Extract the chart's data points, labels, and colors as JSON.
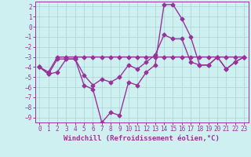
{
  "xlabel": "Windchill (Refroidissement éolien,°C)",
  "background_color": "#cff0f0",
  "grid_color": "#aad4d4",
  "line_color": "#993399",
  "x": [
    0,
    1,
    2,
    3,
    4,
    5,
    6,
    7,
    8,
    9,
    10,
    11,
    12,
    13,
    14,
    15,
    16,
    17,
    18,
    19,
    20,
    21,
    22,
    23
  ],
  "line1": [
    -4.0,
    -4.5,
    -3.0,
    -3.0,
    -3.0,
    -3.0,
    -3.0,
    -3.0,
    -3.0,
    -3.0,
    -3.0,
    -3.0,
    -3.0,
    -3.0,
    -3.0,
    -3.0,
    -3.0,
    -3.0,
    -3.0,
    -3.0,
    -3.0,
    -3.0,
    -3.0,
    -3.0
  ],
  "line2": [
    -4.0,
    -4.7,
    -4.5,
    -3.2,
    -3.2,
    -4.8,
    -5.8,
    -5.2,
    -5.5,
    -5.0,
    -3.8,
    -4.2,
    -3.5,
    -2.8,
    -0.8,
    -1.2,
    -1.2,
    -3.5,
    -3.8,
    -3.8,
    -3.0,
    -4.2,
    -3.5,
    -3.0
  ],
  "line3": [
    -4.0,
    -4.7,
    -3.2,
    -3.2,
    -3.2,
    -5.8,
    -6.2,
    -9.5,
    -8.5,
    -8.8,
    -5.5,
    -5.8,
    -4.5,
    -3.8,
    2.2,
    2.2,
    0.8,
    -1.0,
    -3.8,
    -3.8,
    -3.0,
    -4.2,
    -3.5,
    -3.0
  ],
  "ylim": [
    -9.5,
    2.5
  ],
  "xlim": [
    -0.5,
    23.5
  ],
  "yticks": [
    2,
    1,
    0,
    -1,
    -2,
    -3,
    -4,
    -5,
    -6,
    -7,
    -8,
    -9
  ],
  "xticks": [
    0,
    1,
    2,
    3,
    4,
    5,
    6,
    7,
    8,
    9,
    10,
    11,
    12,
    13,
    14,
    15,
    16,
    17,
    18,
    19,
    20,
    21,
    22,
    23
  ],
  "marker": "D",
  "markersize": 2.5,
  "linewidth": 1.0,
  "tick_fontsize": 5.5,
  "xlabel_fontsize": 6.5
}
